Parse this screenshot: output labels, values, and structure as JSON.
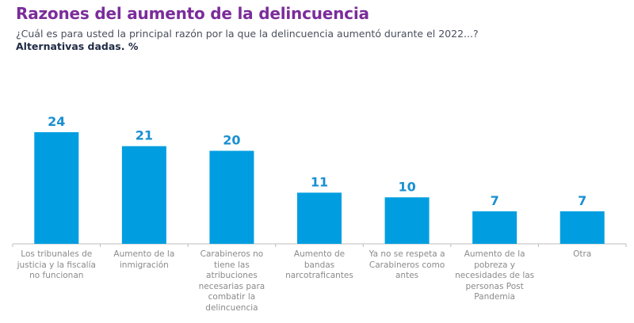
{
  "header": {
    "title": "Razones del aumento de la delincuencia",
    "subtitle": "¿Cuál es para usted la principal razón por la que la delincuencia aumentó durante el 2022...?",
    "note": "Alternativas dadas. %"
  },
  "colors": {
    "bar": "#009ee0",
    "title": "#7b2c9a",
    "value_label": "#1a8fd0"
  },
  "chart_data": {
    "type": "bar",
    "title": "Razones del aumento de la delincuencia",
    "xlabel": "",
    "ylabel": "%",
    "ylim": [
      0,
      26
    ],
    "grid": false,
    "legend": "none",
    "categories": [
      "Los tribunales de justicia y la fiscalía no funcionan",
      "Aumento de la inmigración",
      "Carabineros no tiene las atribuciones necesarias para combatir la delincuencia",
      "Aumento de bandas narcotraficantes",
      "Ya no se respeta a Carabineros como antes",
      "Aumento de la pobreza y necesidades de las personas Post Pandemia",
      "Otra"
    ],
    "category_lines": [
      [
        "Los tribunales de",
        "justicia y la fiscalía",
        "no funcionan"
      ],
      [
        "Aumento de la",
        "inmigración"
      ],
      [
        "Carabineros no",
        "tiene las",
        "atribuciones",
        "necesarias para",
        "combatir la",
        "delincuencia"
      ],
      [
        "Aumento de",
        "bandas",
        "narcotraficantes"
      ],
      [
        "Ya no se respeta a",
        "Carabineros como",
        "antes"
      ],
      [
        "Aumento de la",
        "pobreza y",
        "necesidades de las",
        "personas Post",
        "Pandemia"
      ],
      [
        "Otra"
      ]
    ],
    "values": [
      24,
      21,
      20,
      11,
      10,
      7,
      7
    ],
    "value_labels": [
      "24",
      "21",
      "20",
      "11",
      "10",
      "7",
      "7"
    ]
  }
}
